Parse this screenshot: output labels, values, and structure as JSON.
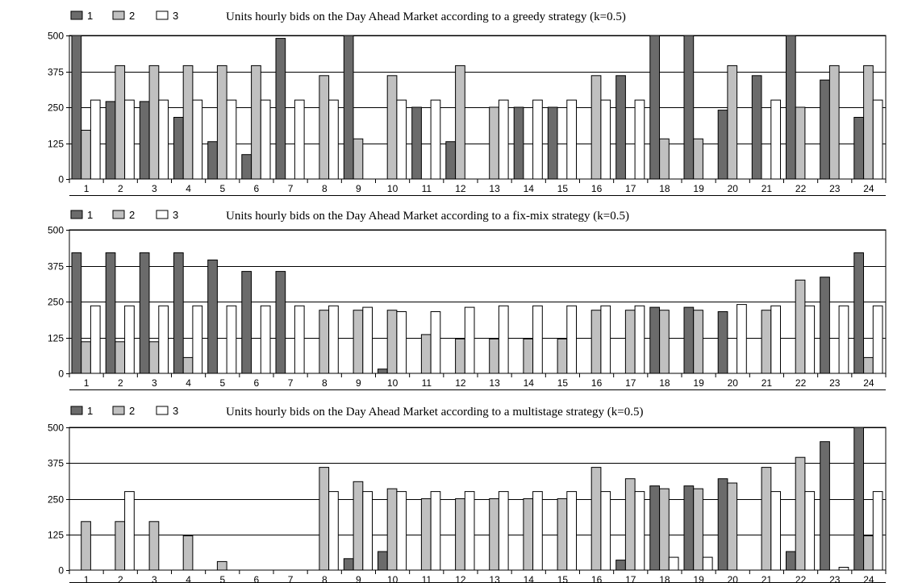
{
  "colors": {
    "series_1": "#6b6b6b",
    "series_2": "#c0c0c0",
    "series_3": "#ffffff",
    "outline": "#000000",
    "grid": "#000000"
  },
  "chart_data": [
    {
      "type": "bar",
      "title": "Units hourly bids on the Day Ahead Market according to a greedy strategy (k=0.5)",
      "xlabel": "",
      "ylabel": "",
      "ylim": [
        0,
        500
      ],
      "yticks": [
        "0",
        "125",
        "250",
        "375",
        "500"
      ],
      "grid": true,
      "legend": "top-left",
      "categories": [
        "1",
        "2",
        "3",
        "4",
        "5",
        "6",
        "7",
        "8",
        "9",
        "10",
        "11",
        "12",
        "13",
        "14",
        "15",
        "16",
        "17",
        "18",
        "19",
        "20",
        "21",
        "22",
        "23",
        "24"
      ],
      "series": [
        {
          "name": "1",
          "values": [
            500,
            270,
            270,
            215,
            130,
            85,
            490,
            0,
            500,
            0,
            250,
            130,
            0,
            250,
            250,
            0,
            360,
            500,
            500,
            240,
            360,
            500,
            345,
            215
          ]
        },
        {
          "name": "2",
          "values": [
            170,
            395,
            395,
            395,
            395,
            395,
            0,
            360,
            140,
            360,
            0,
            395,
            250,
            0,
            0,
            360,
            0,
            140,
            140,
            395,
            0,
            250,
            395,
            395
          ]
        },
        {
          "name": "3",
          "values": [
            275,
            275,
            275,
            275,
            275,
            275,
            275,
            275,
            0,
            275,
            275,
            0,
            275,
            275,
            275,
            275,
            275,
            0,
            0,
            0,
            275,
            0,
            0,
            275
          ]
        }
      ]
    },
    {
      "type": "bar",
      "title": "Units hourly bids on the Day Ahead Market according to a fix-mix strategy (k=0.5)",
      "xlabel": "",
      "ylabel": "",
      "ylim": [
        0,
        500
      ],
      "yticks": [
        "0",
        "125",
        "250",
        "375",
        "500"
      ],
      "grid": true,
      "legend": "top-left",
      "categories": [
        "1",
        "2",
        "3",
        "4",
        "5",
        "6",
        "7",
        "8",
        "9",
        "10",
        "11",
        "12",
        "13",
        "14",
        "15",
        "16",
        "17",
        "18",
        "19",
        "20",
        "21",
        "22",
        "23",
        "24"
      ],
      "series": [
        {
          "name": "1",
          "values": [
            420,
            420,
            420,
            420,
            395,
            355,
            355,
            0,
            0,
            15,
            0,
            0,
            0,
            0,
            0,
            0,
            0,
            230,
            230,
            215,
            0,
            0,
            335,
            420
          ]
        },
        {
          "name": "2",
          "values": [
            110,
            110,
            110,
            55,
            0,
            0,
            0,
            220,
            220,
            220,
            135,
            120,
            120,
            120,
            120,
            220,
            220,
            220,
            220,
            0,
            220,
            325,
            0,
            55
          ]
        },
        {
          "name": "3",
          "values": [
            235,
            235,
            235,
            235,
            235,
            235,
            235,
            235,
            230,
            215,
            215,
            230,
            235,
            235,
            235,
            235,
            235,
            0,
            0,
            240,
            235,
            235,
            235,
            235
          ]
        }
      ]
    },
    {
      "type": "bar",
      "title": "Units hourly bids on the Day Ahead Market according to a multistage strategy (k=0.5)",
      "xlabel": "",
      "ylabel": "",
      "ylim": [
        0,
        500
      ],
      "yticks": [
        "0",
        "125",
        "250",
        "375",
        "500"
      ],
      "grid": true,
      "legend": "top-left",
      "categories": [
        "1",
        "2",
        "3",
        "4",
        "5",
        "6",
        "7",
        "8",
        "9",
        "10",
        "11",
        "12",
        "13",
        "14",
        "15",
        "16",
        "17",
        "18",
        "19",
        "20",
        "21",
        "22",
        "23",
        "24"
      ],
      "series": [
        {
          "name": "1",
          "values": [
            0,
            0,
            0,
            0,
            0,
            0,
            0,
            0,
            40,
            65,
            0,
            0,
            0,
            0,
            0,
            0,
            35,
            295,
            295,
            320,
            0,
            65,
            450,
            500
          ]
        },
        {
          "name": "2",
          "values": [
            170,
            170,
            170,
            120,
            30,
            0,
            0,
            360,
            310,
            285,
            250,
            250,
            250,
            250,
            250,
            360,
            320,
            285,
            285,
            305,
            360,
            395,
            0,
            120
          ]
        },
        {
          "name": "3",
          "values": [
            0,
            275,
            0,
            0,
            0,
            0,
            0,
            275,
            275,
            275,
            275,
            275,
            275,
            275,
            275,
            275,
            275,
            45,
            45,
            0,
            275,
            275,
            10,
            275
          ]
        }
      ]
    }
  ]
}
